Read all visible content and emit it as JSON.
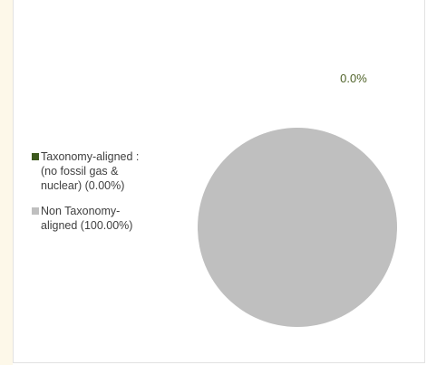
{
  "chart_data": {
    "type": "pie",
    "title": "",
    "slices": [
      {
        "label_line1": "Taxonomy-aligned :",
        "label_line2": "(no fossil gas &",
        "label_line3": "nuclear) (0.00%)",
        "value": 0.0,
        "color": "#3d5a1e"
      },
      {
        "label_line1": "Non Taxonomy-",
        "label_line2": "aligned (100.00%)",
        "value": 100.0,
        "color": "#bfbfbf"
      }
    ],
    "data_labels": [
      {
        "text": "0.0%",
        "color": "#4f6228"
      }
    ],
    "legend_position": "left"
  }
}
